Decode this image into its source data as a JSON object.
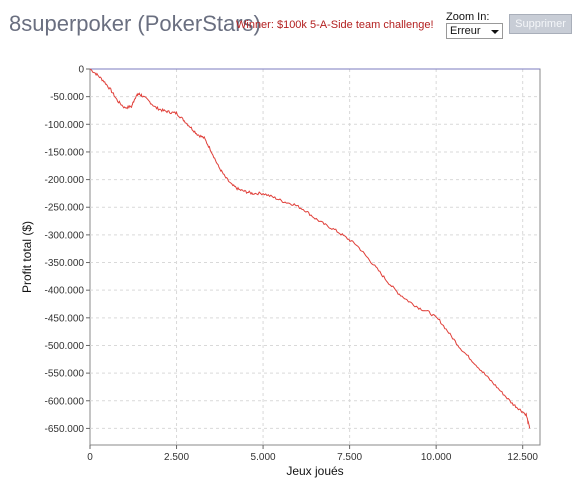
{
  "header": {
    "title": "8superpoker (PokerStars)",
    "badge": "Winner: $100k 5-A-Side team challenge!",
    "zoom_label": "Zoom In:",
    "zoom_value": "Erreur",
    "delete_label": "Supprimer"
  },
  "colors": {
    "line": "#e0403a",
    "title": "#6a6f80",
    "badge": "#b32020",
    "button": "#c8cdd6"
  },
  "chart_data": {
    "type": "line",
    "title": "",
    "xlabel": "Jeux joués",
    "ylabel": "Profit total ($)",
    "xlim": [
      0,
      13000
    ],
    "ylim": [
      -680,
      0
    ],
    "grid": true,
    "legend": "none",
    "x_ticks": [
      0,
      2500,
      5000,
      7500,
      10000,
      12500
    ],
    "x_tick_labels": [
      "0",
      "2.500",
      "5.000",
      "7.500",
      "10.000",
      "12.500"
    ],
    "y_ticks": [
      0,
      -50,
      -100,
      -150,
      -200,
      -250,
      -300,
      -350,
      -400,
      -450,
      -500,
      -550,
      -600,
      -650
    ],
    "y_tick_labels": [
      "0",
      "-50.000",
      "-100.000",
      "-150.000",
      "-200.000",
      "-250.000",
      "-300.000",
      "-350.000",
      "-400.000",
      "-450.000",
      "-500.000",
      "-550.000",
      "-600.000",
      "-650.000"
    ],
    "series": [
      {
        "x": [
          0,
          200,
          400,
          600,
          800,
          1000,
          1200,
          1300,
          1400,
          1500,
          1700,
          1900,
          2100,
          2300,
          2500,
          2700,
          2900,
          3100,
          3300,
          3500,
          3700,
          3900,
          4100,
          4300,
          4500,
          4700,
          5000,
          5300,
          5600,
          5900,
          6200,
          6500,
          6800,
          7100,
          7400,
          7700,
          8000,
          8300,
          8600,
          8900,
          9200,
          9500,
          9800,
          10100,
          10400,
          10700,
          11000,
          11300,
          11600,
          11900,
          12200,
          12400,
          12600,
          12700
        ],
        "y": [
          0,
          -10,
          -22,
          -38,
          -58,
          -70,
          -68,
          -52,
          -45,
          -48,
          -58,
          -70,
          -75,
          -78,
          -80,
          -92,
          -105,
          -118,
          -125,
          -148,
          -175,
          -195,
          -210,
          -218,
          -222,
          -225,
          -225,
          -232,
          -240,
          -245,
          -255,
          -270,
          -282,
          -292,
          -305,
          -318,
          -340,
          -362,
          -385,
          -405,
          -420,
          -432,
          -440,
          -455,
          -480,
          -505,
          -525,
          -545,
          -565,
          -585,
          -605,
          -615,
          -625,
          -650
        ]
      }
    ]
  }
}
